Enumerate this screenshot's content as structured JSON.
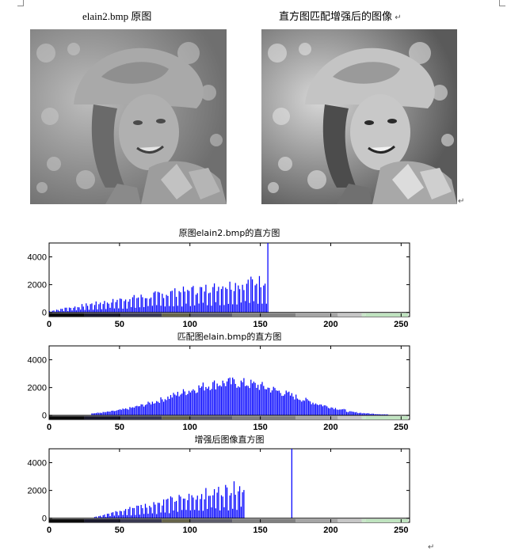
{
  "captions": {
    "original": "elain2.bmp 原图",
    "enhanced": "直方图匹配增强后的图像",
    "return_mark": "↵"
  },
  "photos": {
    "original": {
      "kind": "grayscale-portrait",
      "tone": "low-contrast"
    },
    "enhanced": {
      "kind": "grayscale-portrait",
      "tone": "high-contrast"
    }
  },
  "charts": [
    {
      "title": "原图elain2.bmp的直方图"
    },
    {
      "title": "匹配图elain.bmp的直方图"
    },
    {
      "title": "增强后图像直方图"
    }
  ],
  "chart_data": [
    {
      "type": "bar",
      "title": "原图elain2.bmp的直方图",
      "x_range": [
        0,
        256
      ],
      "ylim": [
        -300,
        5000
      ],
      "xticks": [
        0,
        50,
        100,
        150,
        200,
        250
      ],
      "yticks": [
        0,
        2000,
        4000
      ],
      "bar_color": "#0000ff",
      "colorbar": "grayscale 0-255 strip beneath axis",
      "series": [
        {
          "x_start": 0,
          "x_end": 154,
          "values_start": 100,
          "values_end": 2350,
          "shape": "rising"
        },
        {
          "x": 155,
          "value": 5000,
          "note": "spike clipped at top"
        }
      ]
    },
    {
      "type": "bar",
      "title": "匹配图elain.bmp的直方图",
      "x_range": [
        0,
        256
      ],
      "ylim": [
        -300,
        5000
      ],
      "xticks": [
        0,
        50,
        100,
        150,
        200,
        250
      ],
      "yticks": [
        0,
        2000,
        4000
      ],
      "bar_color": "#0000ff",
      "series": [
        {
          "x_start": 30,
          "x_end": 240,
          "peak_x": 130,
          "peak_value": 2400,
          "shape": "hump"
        }
      ]
    },
    {
      "type": "bar",
      "title": "增强后图像直方图",
      "x_range": [
        0,
        256
      ],
      "ylim": [
        -300,
        5000
      ],
      "xticks": [
        0,
        50,
        100,
        150,
        200,
        250
      ],
      "yticks": [
        0,
        2000,
        4000
      ],
      "bar_color": "#0000ff",
      "series": [
        {
          "x_start": 32,
          "x_end": 138,
          "values_start": 100,
          "values_end": 2350,
          "shape": "rising"
        },
        {
          "x": 172,
          "value": 5000,
          "note": "spike clipped at top"
        }
      ]
    }
  ]
}
